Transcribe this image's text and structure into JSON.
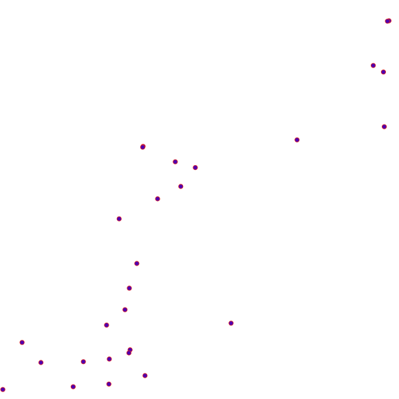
{
  "chart_data": {
    "type": "scatter",
    "title": "",
    "xlabel": "",
    "ylabel": "",
    "grid": false,
    "legend": "none",
    "xlim": [
      0,
      1
    ],
    "ylim": [
      0,
      1
    ],
    "marker": {
      "fill": "#5000b0",
      "edge": "#e0201e"
    },
    "points": [
      {
        "x": 0.985,
        "y": 0.971
      },
      {
        "x": 0.981,
        "y": 0.97
      },
      {
        "x": 0.945,
        "y": 0.855
      },
      {
        "x": 0.971,
        "y": 0.838
      },
      {
        "x": 0.973,
        "y": 0.696
      },
      {
        "x": 0.751,
        "y": 0.662
      },
      {
        "x": 0.359,
        "y": 0.645
      },
      {
        "x": 0.358,
        "y": 0.643
      },
      {
        "x": 0.441,
        "y": 0.605
      },
      {
        "x": 0.492,
        "y": 0.59
      },
      {
        "x": 0.455,
        "y": 0.541
      },
      {
        "x": 0.396,
        "y": 0.509
      },
      {
        "x": 0.298,
        "y": 0.457
      },
      {
        "x": 0.343,
        "y": 0.341
      },
      {
        "x": 0.324,
        "y": 0.277
      },
      {
        "x": 0.313,
        "y": 0.221
      },
      {
        "x": 0.583,
        "y": 0.186
      },
      {
        "x": 0.266,
        "y": 0.181
      },
      {
        "x": 0.051,
        "y": 0.136
      },
      {
        "x": 0.326,
        "y": 0.117
      },
      {
        "x": 0.323,
        "y": 0.109
      },
      {
        "x": 0.273,
        "y": 0.093
      },
      {
        "x": 0.207,
        "y": 0.086
      },
      {
        "x": 0.099,
        "y": 0.084
      },
      {
        "x": 0.364,
        "y": 0.05
      },
      {
        "x": 0.272,
        "y": 0.028
      },
      {
        "x": 0.181,
        "y": 0.021
      },
      {
        "x": 0.002,
        "y": 0.014
      }
    ]
  }
}
